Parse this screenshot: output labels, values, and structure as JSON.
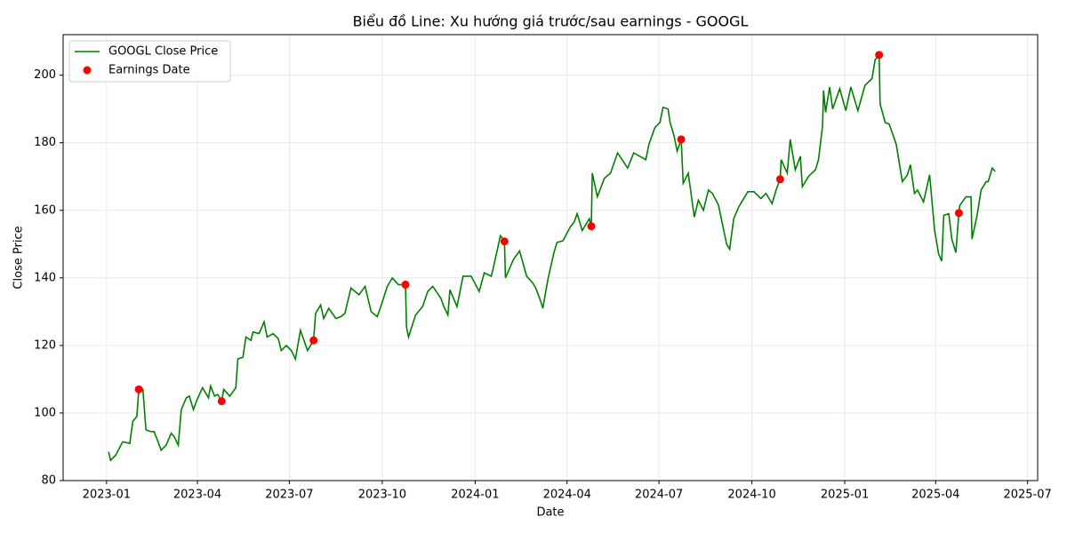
{
  "chart_data": {
    "type": "line",
    "title": "Biểu đồ Line: Xu hướng giá trước/sau earnings - GOOGL",
    "x_label": "Date",
    "y_label": "Close Price",
    "grid": true,
    "legend": "upper left",
    "xlim": [
      "2022-11-19",
      "2025-07-11"
    ],
    "ylim": [
      80,
      212
    ],
    "yticks": [
      80,
      100,
      120,
      140,
      160,
      180,
      200
    ],
    "xticks": [
      {
        "value": "2023-01-01",
        "label": "2023-01"
      },
      {
        "value": "2023-04-01",
        "label": "2023-04"
      },
      {
        "value": "2023-07-01",
        "label": "2023-07"
      },
      {
        "value": "2023-10-01",
        "label": "2023-10"
      },
      {
        "value": "2024-01-01",
        "label": "2024-01"
      },
      {
        "value": "2024-04-01",
        "label": "2024-04"
      },
      {
        "value": "2024-07-01",
        "label": "2024-07"
      },
      {
        "value": "2024-10-01",
        "label": "2024-10"
      },
      {
        "value": "2025-01-01",
        "label": "2025-01"
      },
      {
        "value": "2025-04-01",
        "label": "2025-04"
      },
      {
        "value": "2025-07-01",
        "label": "2025-07"
      }
    ],
    "x": [
      "2023-01-03",
      "2023-01-05",
      "2023-01-10",
      "2023-01-17",
      "2023-01-24",
      "2023-01-27",
      "2023-01-31",
      "2023-02-02",
      "2023-02-06",
      "2023-02-08",
      "2023-02-09",
      "2023-02-14",
      "2023-02-17",
      "2023-02-21",
      "2023-02-24",
      "2023-03-01",
      "2023-03-06",
      "2023-03-09",
      "2023-03-13",
      "2023-03-16",
      "2023-03-21",
      "2023-03-24",
      "2023-03-28",
      "2023-03-31",
      "2023-04-06",
      "2023-04-12",
      "2023-04-14",
      "2023-04-18",
      "2023-04-21",
      "2023-04-25",
      "2023-04-27",
      "2023-05-03",
      "2023-05-09",
      "2023-05-11",
      "2023-05-16",
      "2023-05-19",
      "2023-05-24",
      "2023-05-26",
      "2023-06-01",
      "2023-06-06",
      "2023-06-09",
      "2023-06-15",
      "2023-06-20",
      "2023-06-23",
      "2023-06-28",
      "2023-07-03",
      "2023-07-07",
      "2023-07-12",
      "2023-07-19",
      "2023-07-25",
      "2023-07-27",
      "2023-08-01",
      "2023-08-04",
      "2023-08-09",
      "2023-08-16",
      "2023-08-21",
      "2023-08-25",
      "2023-08-31",
      "2023-09-08",
      "2023-09-14",
      "2023-09-20",
      "2023-09-26",
      "2023-09-29",
      "2023-10-06",
      "2023-10-11",
      "2023-10-17",
      "2023-10-24",
      "2023-10-25",
      "2023-10-27",
      "2023-11-03",
      "2023-11-10",
      "2023-11-15",
      "2023-11-20",
      "2023-11-28",
      "2023-12-01",
      "2023-12-05",
      "2023-12-07",
      "2023-12-14",
      "2023-12-20",
      "2023-12-28",
      "2024-01-05",
      "2024-01-10",
      "2024-01-17",
      "2024-01-22",
      "2024-01-26",
      "2024-01-30",
      "2024-01-31",
      "2024-02-08",
      "2024-02-14",
      "2024-02-21",
      "2024-02-27",
      "2024-03-01",
      "2024-03-06",
      "2024-03-08",
      "2024-03-13",
      "2024-03-19",
      "2024-03-22",
      "2024-03-28",
      "2024-04-04",
      "2024-04-08",
      "2024-04-11",
      "2024-04-16",
      "2024-04-23",
      "2024-04-25",
      "2024-04-26",
      "2024-05-01",
      "2024-05-08",
      "2024-05-14",
      "2024-05-21",
      "2024-05-31",
      "2024-06-06",
      "2024-06-12",
      "2024-06-18",
      "2024-06-21",
      "2024-06-27",
      "2024-07-02",
      "2024-07-05",
      "2024-07-10",
      "2024-07-12",
      "2024-07-16",
      "2024-07-19",
      "2024-07-23",
      "2024-07-25",
      "2024-07-30",
      "2024-08-05",
      "2024-08-09",
      "2024-08-14",
      "2024-08-19",
      "2024-08-23",
      "2024-08-29",
      "2024-09-06",
      "2024-09-09",
      "2024-09-13",
      "2024-09-18",
      "2024-09-23",
      "2024-09-27",
      "2024-10-03",
      "2024-10-10",
      "2024-10-15",
      "2024-10-21",
      "2024-10-25",
      "2024-10-29",
      "2024-10-30",
      "2024-11-05",
      "2024-11-08",
      "2024-11-13",
      "2024-11-18",
      "2024-11-20",
      "2024-11-26",
      "2024-12-03",
      "2024-12-06",
      "2024-12-10",
      "2024-12-11",
      "2024-12-13",
      "2024-12-17",
      "2024-12-20",
      "2024-12-27",
      "2025-01-02",
      "2025-01-07",
      "2025-01-14",
      "2025-01-21",
      "2025-01-28",
      "2025-01-31",
      "2025-02-04",
      "2025-02-05",
      "2025-02-10",
      "2025-02-14",
      "2025-02-21",
      "2025-02-27",
      "2025-03-04",
      "2025-03-07",
      "2025-03-11",
      "2025-03-14",
      "2025-03-20",
      "2025-03-26",
      "2025-03-31",
      "2025-04-04",
      "2025-04-07",
      "2025-04-09",
      "2025-04-14",
      "2025-04-17",
      "2025-04-21",
      "2025-04-24",
      "2025-04-25",
      "2025-05-01",
      "2025-05-06",
      "2025-05-07",
      "2025-05-12",
      "2025-05-16",
      "2025-05-21",
      "2025-05-23",
      "2025-05-27",
      "2025-05-30"
    ],
    "series": [
      {
        "name": "GOOGL Close Price",
        "type": "line",
        "color": "#008000",
        "values": [
          88.5,
          86,
          87.5,
          91.5,
          91,
          97.5,
          99,
          107,
          107,
          99,
          95,
          94.5,
          94.5,
          91.5,
          89,
          90.5,
          94,
          93,
          90.5,
          101,
          104.5,
          105,
          101,
          103.5,
          107.5,
          104.5,
          108,
          105,
          105.5,
          103.5,
          107,
          105,
          107.5,
          116,
          116.5,
          122.5,
          121.5,
          124,
          123.5,
          127,
          122.5,
          123.5,
          122,
          118.5,
          120,
          118.5,
          116,
          124.5,
          118.5,
          121.5,
          129.5,
          132,
          128,
          131,
          128,
          128.5,
          129.5,
          137,
          135,
          137.5,
          130,
          128.5,
          131,
          137.5,
          140,
          138,
          138,
          125.5,
          122.5,
          129,
          131.5,
          136,
          137.5,
          134,
          131.5,
          129,
          136.5,
          131.5,
          140.5,
          140.5,
          136,
          141.5,
          140.5,
          147,
          152.5,
          150.8,
          140,
          145.5,
          148,
          140.5,
          138.5,
          137,
          133,
          131,
          139.5,
          147.5,
          150.5,
          151,
          155,
          156.5,
          159,
          154,
          157.5,
          155.3,
          171,
          164,
          169.5,
          171,
          177,
          172.5,
          177,
          176,
          175,
          179.5,
          184.5,
          186,
          190.5,
          190,
          186,
          182,
          177.5,
          181,
          168,
          171,
          158,
          163,
          160,
          166,
          165,
          161.5,
          150,
          148.5,
          157.5,
          161,
          163.5,
          165.5,
          165.5,
          163.5,
          165,
          162,
          166,
          169.2,
          175,
          171,
          181,
          172,
          176,
          167,
          170,
          172,
          175,
          185,
          195.5,
          189,
          196.5,
          190,
          196,
          189.5,
          196.5,
          189.5,
          197,
          199,
          204.5,
          206,
          191.5,
          186,
          185.5,
          179.5,
          168.5,
          170.5,
          173.5,
          165,
          166,
          162.5,
          170.5,
          154,
          147,
          145,
          158.5,
          159,
          151.5,
          147.5,
          159.2,
          161.5,
          164,
          164,
          151.5,
          158.5,
          166,
          168.5,
          168.5,
          172.5,
          171.5
        ]
      },
      {
        "name": "Earnings Date",
        "type": "scatter",
        "color": "#ff0000",
        "x": [
          "2023-02-02",
          "2023-04-25",
          "2023-07-25",
          "2023-10-24",
          "2024-01-30",
          "2024-04-25",
          "2024-07-23",
          "2024-10-29",
          "2025-02-04",
          "2025-04-24"
        ],
        "values": [
          107,
          103.5,
          121.5,
          138,
          150.8,
          155.3,
          181,
          169.2,
          206,
          159.2
        ]
      }
    ]
  }
}
